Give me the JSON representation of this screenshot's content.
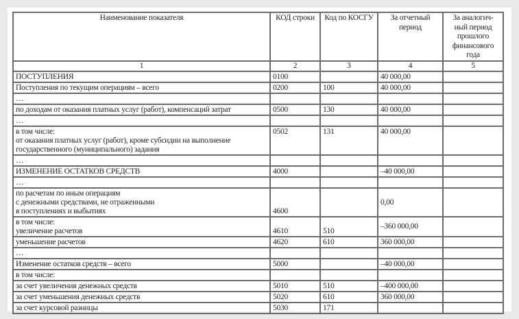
{
  "headers": [
    "Наименование показателя",
    "КОД строки",
    "Код по КОСГУ",
    "За отчетный период",
    "За аналогич-ный период прошлого финансового года"
  ],
  "column_numbers": [
    "1",
    "2",
    "3",
    "4",
    "5"
  ],
  "rows": [
    {
      "name": "ПОСТУПЛЕНИЯ",
      "code": "0100",
      "kosgu": "",
      "current": "40 000,00",
      "prev": ""
    },
    {
      "name": "Поступления по текущим операциям – всего",
      "code": "0200",
      "kosgu": "100",
      "current": "40 000,00",
      "prev": ""
    },
    {
      "name": "…",
      "code": "",
      "kosgu": "",
      "current": "",
      "prev": ""
    },
    {
      "name": "по доходам от оказания платных услуг (работ), компенсаций затрат",
      "code": "0500",
      "kosgu": "130",
      "current": "40 000,00",
      "prev": ""
    },
    {
      "name": "…",
      "code": "",
      "kosgu": "",
      "current": "",
      "prev": ""
    },
    {
      "name_lines": [
        "в том числе:",
        "от оказания платных услуг (работ), кроме субсидии на выполнение",
        "государственного (муниципального) задания"
      ],
      "code": "0502",
      "kosgu": "131",
      "current": "40 000,00",
      "prev": ""
    },
    {
      "name": "…",
      "code": "",
      "kosgu": "",
      "current": "",
      "prev": ""
    },
    {
      "name": "ИЗМЕНЕНИЕ ОСТАТКОВ СРЕДСТВ",
      "code": "4000",
      "kosgu": "",
      "current": "–40 000,00",
      "prev": ""
    },
    {
      "name": "…",
      "code": "",
      "kosgu": "",
      "current": "",
      "prev": ""
    },
    {
      "name_lines": [
        "по расчетам по иным операциям",
        "с денежными средствами, не отраженными",
        "в поступлениях и выбытиях"
      ],
      "code": "4600",
      "kosgu": "",
      "current": "0,00",
      "prev": ""
    },
    {
      "name_lines": [
        "в том числе:",
        "увеличение расчетов"
      ],
      "code": "4610",
      "kosgu": "510",
      "current": "–360 000,00",
      "prev": ""
    },
    {
      "name": "уменьшение расчетов",
      "code": "4620",
      "kosgu": "610",
      "current": "360 000,00",
      "prev": ""
    },
    {
      "name": "…",
      "code": "",
      "kosgu": "",
      "current": "",
      "prev": ""
    },
    {
      "name": "Изменение остатков средств – всего",
      "code": "5000",
      "kosgu": "",
      "current": "–40 000,00",
      "prev": ""
    },
    {
      "name": "в том числе:",
      "code": "",
      "kosgu": "",
      "current": "",
      "prev": ""
    },
    {
      "name": "за счет увеличения денежных средств",
      "code": "5010",
      "kosgu": "510",
      "current": "–400 000,00",
      "prev": ""
    },
    {
      "name": "за счет уменьшения денежных средств",
      "code": "5020",
      "kosgu": "610",
      "current": "360 000,00",
      "prev": ""
    },
    {
      "name": "за счет курсовой разницы",
      "code": "5030",
      "kosgu": "171",
      "current": "",
      "prev": ""
    }
  ]
}
